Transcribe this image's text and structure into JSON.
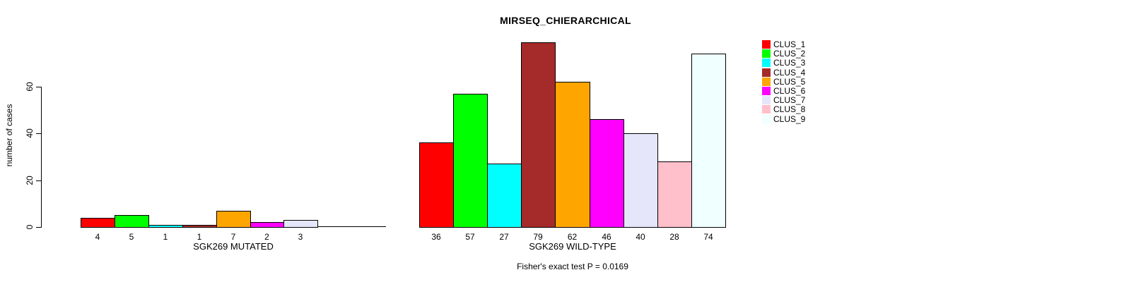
{
  "chart_data": {
    "type": "bar",
    "title": "MIRSEQ_CHIERARCHICAL",
    "ylabel": "number of cases",
    "ylim": [
      0,
      60
    ],
    "y_ticks": [
      0,
      20,
      40,
      60
    ],
    "grid": false,
    "legend_position": "right-top",
    "categories": [
      "CLUS_1",
      "CLUS_2",
      "CLUS_3",
      "CLUS_4",
      "CLUS_5",
      "CLUS_6",
      "CLUS_7",
      "CLUS_8",
      "CLUS_9"
    ],
    "colors": [
      "#FF0000",
      "#00FF00",
      "#00FFFF",
      "#A52A2A",
      "#FFA500",
      "#FF00FF",
      "#E6E6FA",
      "#FFC0CB",
      "#F0FFFF"
    ],
    "groups": [
      {
        "xlabel": "SGK269 MUTATED",
        "values": [
          4,
          5,
          1,
          1,
          7,
          2,
          3,
          0,
          0
        ]
      },
      {
        "xlabel": "SGK269 WILD-TYPE",
        "values": [
          36,
          57,
          27,
          79,
          62,
          46,
          40,
          28,
          74
        ]
      }
    ],
    "annotation": "Fisher's exact test P = 0.0169"
  }
}
